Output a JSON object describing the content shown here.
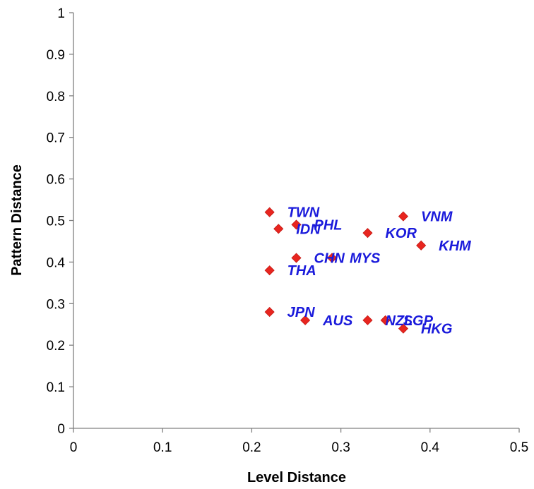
{
  "chart_data": {
    "type": "scatter",
    "title": "",
    "xlabel": "Level Distance",
    "ylabel": "Pattern Distance",
    "xlim": [
      0,
      0.5
    ],
    "ylim": [
      0,
      1
    ],
    "xticks": [
      "0",
      "0.1",
      "0.2",
      "0.3",
      "0.4",
      "0.5"
    ],
    "yticks": [
      "0",
      "0.1",
      "0.2",
      "0.3",
      "0.4",
      "0.5",
      "0.6",
      "0.7",
      "0.8",
      "0.9",
      "1"
    ],
    "grid": false,
    "marker_color": "#e8251f",
    "label_color": "#1a1adb",
    "points": [
      {
        "label": "TWN",
        "x": 0.22,
        "y": 0.52
      },
      {
        "label": "IDN",
        "x": 0.23,
        "y": 0.48
      },
      {
        "label": "PHL",
        "x": 0.25,
        "y": 0.49
      },
      {
        "label": "VNM",
        "x": 0.37,
        "y": 0.51
      },
      {
        "label": "KOR",
        "x": 0.33,
        "y": 0.47
      },
      {
        "label": "KHM",
        "x": 0.39,
        "y": 0.44
      },
      {
        "label": "CHN",
        "x": 0.25,
        "y": 0.41
      },
      {
        "label": "MYS",
        "x": 0.29,
        "y": 0.41
      },
      {
        "label": "THA",
        "x": 0.22,
        "y": 0.38
      },
      {
        "label": "JPN",
        "x": 0.22,
        "y": 0.28
      },
      {
        "label": "AUS",
        "x": 0.26,
        "y": 0.26
      },
      {
        "label": "NZL",
        "x": 0.33,
        "y": 0.26
      },
      {
        "label": "SGP",
        "x": 0.35,
        "y": 0.26
      },
      {
        "label": "HKG",
        "x": 0.37,
        "y": 0.24
      }
    ]
  }
}
